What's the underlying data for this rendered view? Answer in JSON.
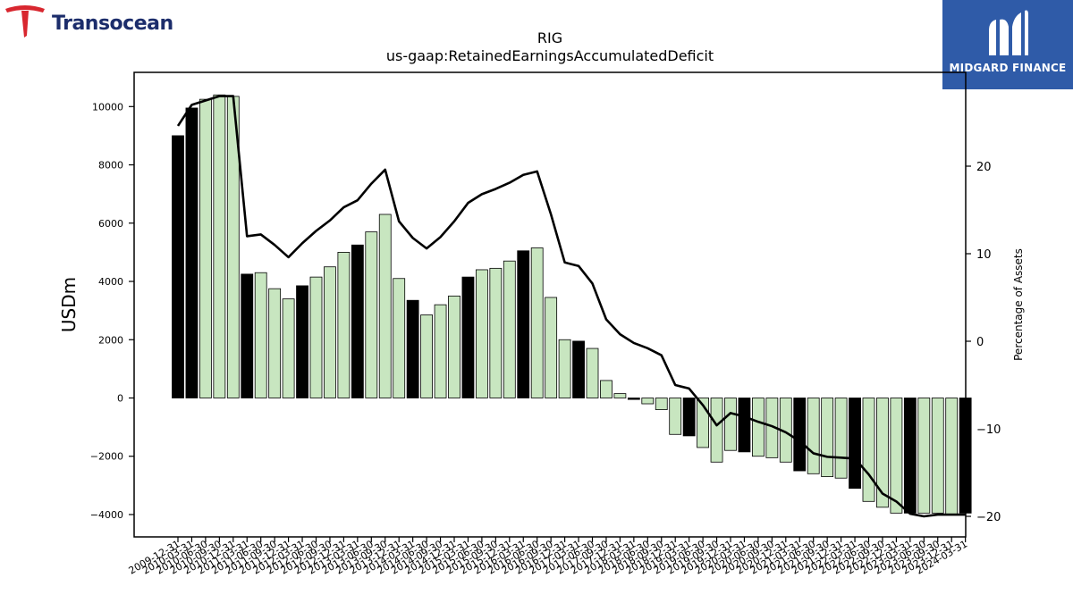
{
  "header": {
    "left_logo_text": "Transocean",
    "right_logo_text": "MIDGARD FINANCE"
  },
  "colors": {
    "bar_black": "#000000",
    "bar_green": "#c8e6c0",
    "line": "#000000",
    "brand_navy": "#1c2d6b",
    "brand_red": "#d8272f",
    "brand_blue": "#2f5ba8"
  },
  "chart_data": {
    "type": "bar",
    "title": "RIG",
    "subtitle": "us-gaap:RetainedEarningsAccumulatedDeficit",
    "ylabel": "USDm",
    "y2label": "Percentage of Assets",
    "ylim": [
      -4800,
      11000
    ],
    "y2lim": [
      -22.2,
      30.8
    ],
    "yticks": [
      -4000,
      -2000,
      0,
      2000,
      4000,
      6000,
      8000,
      10000
    ],
    "y2ticks": [
      -20,
      -10,
      0,
      10,
      20
    ],
    "categories": [
      "2009-12-31",
      "2010-03-31",
      "2010-06-30",
      "2010-09-30",
      "2010-12-31",
      "2011-03-31",
      "2011-06-30",
      "2011-09-30",
      "2011-12-31",
      "2012-03-31",
      "2012-06-30",
      "2012-09-30",
      "2012-12-31",
      "2013-03-31",
      "2013-06-30",
      "2013-09-30",
      "2013-12-31",
      "2014-03-31",
      "2014-06-30",
      "2014-09-30",
      "2014-12-31",
      "2015-03-31",
      "2015-06-30",
      "2015-09-30",
      "2015-12-31",
      "2016-03-31",
      "2016-06-30",
      "2016-09-30",
      "2016-12-31",
      "2017-03-31",
      "2017-06-30",
      "2017-09-30",
      "2017-12-31",
      "2018-03-31",
      "2018-06-30",
      "2018-09-30",
      "2018-12-31",
      "2019-03-31",
      "2019-06-30",
      "2019-09-30",
      "2019-12-31",
      "2020-03-31",
      "2020-06-30",
      "2020-09-30",
      "2020-12-31",
      "2021-03-31",
      "2021-06-30",
      "2021-09-30",
      "2021-12-31",
      "2022-03-31",
      "2022-06-30",
      "2022-09-30",
      "2022-12-31",
      "2023-03-31",
      "2023-06-30",
      "2023-09-30",
      "2023-12-31",
      "2024-03-31"
    ],
    "year_end_flags": [
      1,
      1,
      0,
      0,
      0,
      1,
      0,
      0,
      0,
      1,
      0,
      0,
      0,
      1,
      0,
      0,
      0,
      1,
      0,
      0,
      0,
      1,
      0,
      0,
      0,
      1,
      0,
      0,
      0,
      1,
      0,
      0,
      0,
      1,
      0,
      0,
      0,
      1,
      0,
      0,
      0,
      1,
      0,
      0,
      0,
      1,
      0,
      0,
      0,
      1,
      0,
      0,
      0,
      1,
      0,
      0,
      0,
      1
    ],
    "series": [
      {
        "name": "USDm",
        "type": "bar",
        "values": [
          9000,
          9950,
          10250,
          10400,
          10350,
          4250,
          4300,
          3750,
          3400,
          3850,
          4150,
          4500,
          5000,
          5250,
          5700,
          6300,
          4100,
          3350,
          2850,
          3200,
          3500,
          4150,
          4400,
          4450,
          4700,
          5050,
          5150,
          3450,
          2000,
          1950,
          1700,
          600,
          150,
          -50,
          -200,
          -400,
          -1250,
          -1300,
          -1700,
          -2200,
          -1800,
          -1850,
          -2000,
          -2050,
          -2200,
          -2500,
          -2600,
          -2700,
          -2750,
          -3100,
          -3550,
          -3750,
          -3950,
          -3950,
          -3950,
          -3950,
          -4000,
          -3950
        ]
      },
      {
        "name": "Percentage of Assets",
        "type": "line",
        "axis": "y2",
        "values": [
          24.6,
          27,
          27.5,
          28,
          28,
          12,
          12.2,
          11,
          9.6,
          11.2,
          12.6,
          13.8,
          15.3,
          16.1,
          18,
          19.6,
          13.7,
          11.8,
          10.6,
          11.9,
          13.7,
          15.8,
          16.8,
          17.4,
          18.1,
          19,
          19.4,
          14.5,
          9,
          8.6,
          6.6,
          2.5,
          0.8,
          -0.2,
          -0.8,
          -1.6,
          -5,
          -5.4,
          -7.3,
          -9.6,
          -8.2,
          -8.6,
          -9.2,
          -9.7,
          -10.4,
          -11.4,
          -12.8,
          -13.2,
          -13.3,
          -13.4,
          -15.2,
          -17.4,
          -18.3,
          -19.7,
          -20,
          -19.8,
          -19.8,
          -19.8
        ]
      }
    ],
    "grid": false,
    "legend": "none"
  }
}
